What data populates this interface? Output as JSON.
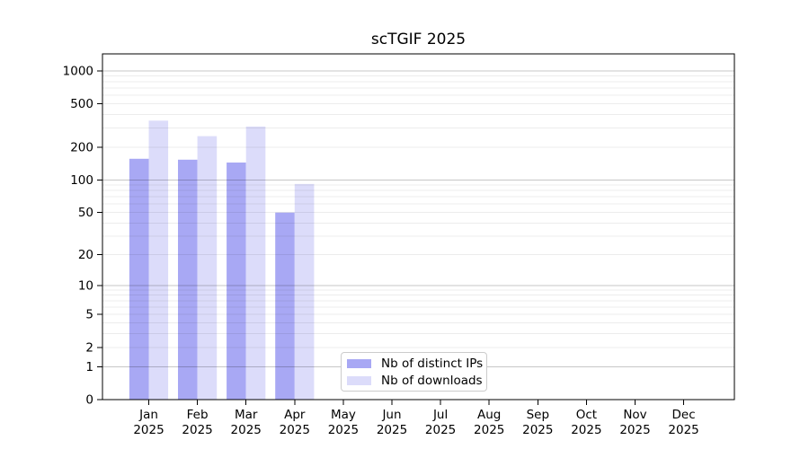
{
  "chart_data": {
    "type": "bar",
    "title": "scTGIF 2025",
    "x_tick_labels": [
      "Jan 2025",
      "Feb 2025",
      "Mar 2025",
      "Apr 2025",
      "May 2025",
      "Jun 2025",
      "Jul 2025",
      "Aug 2025",
      "Sep 2025",
      "Oct 2025",
      "Nov 2025",
      "Dec 2025"
    ],
    "y_ticks": [
      0,
      1,
      2,
      5,
      10,
      20,
      50,
      100,
      200,
      500,
      1000
    ],
    "y_scale": "log1p",
    "ylim": [
      0,
      1000
    ],
    "grid": "both, drawn above bars",
    "legend_position": "lower center",
    "xlabel": "",
    "ylabel": "",
    "series": [
      {
        "name": "Nb of distinct IPs",
        "color": "#a8a8f4",
        "values": [
          157,
          154,
          145,
          50,
          0,
          0,
          0,
          0,
          0,
          0,
          0,
          0
        ]
      },
      {
        "name": "Nb of downloads",
        "color": "#dcdcfa",
        "values": [
          351,
          253,
          310,
          92,
          0,
          0,
          0,
          0,
          0,
          0,
          0,
          0
        ]
      }
    ],
    "colors": {
      "axis_frame": "#000000",
      "major_grid": "rgba(0,0,0,0.22)",
      "minor_grid": "rgba(0,0,0,0.075)",
      "tick_text": "#000000"
    }
  }
}
